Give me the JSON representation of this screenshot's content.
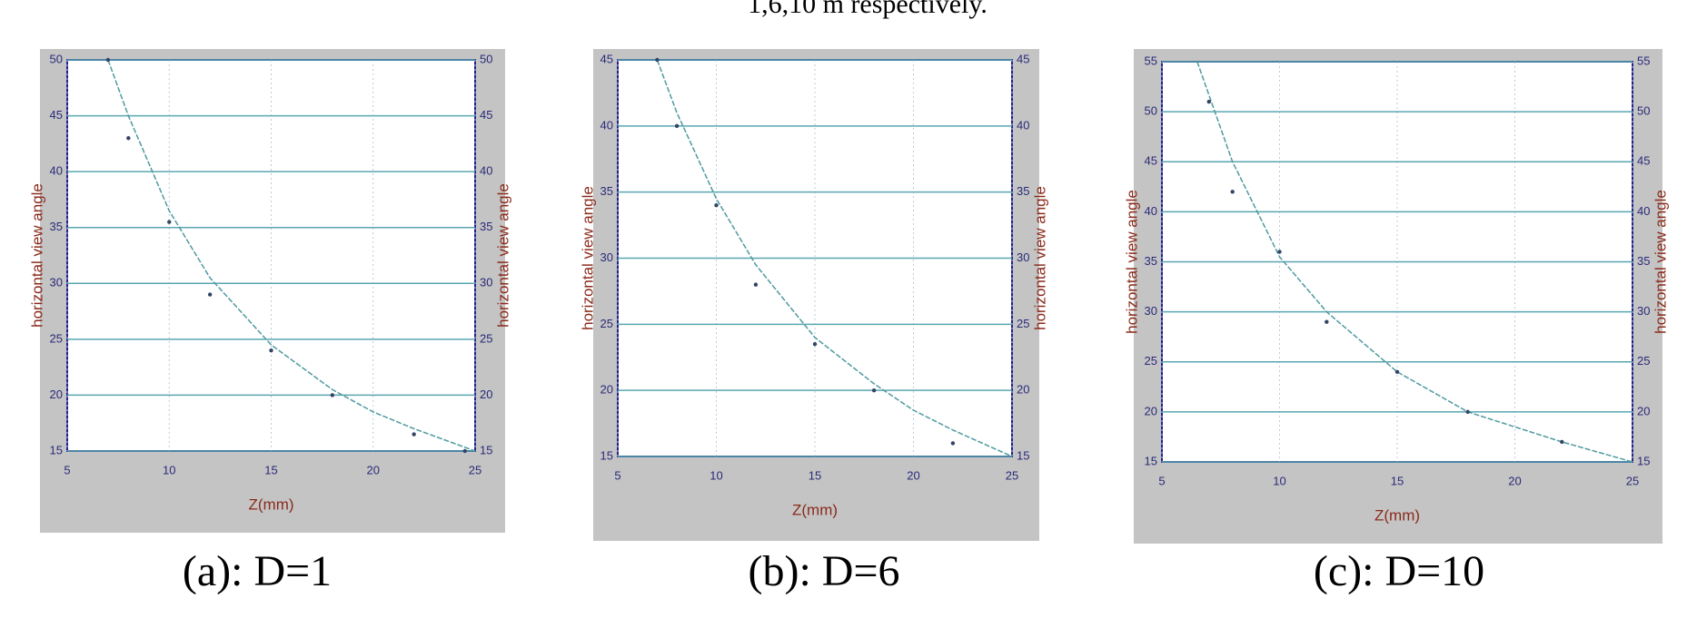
{
  "header_text": "1,6,10 m respectively.",
  "chart_data": [
    {
      "type": "line",
      "caption": "(a): D=1",
      "xlabel": "Z(mm)",
      "ylabel": "horizontal view angle",
      "xlim": [
        5,
        25
      ],
      "xticks": [
        5,
        10,
        15,
        20,
        25
      ],
      "ylim": [
        15,
        50
      ],
      "yticks": [
        15,
        20,
        25,
        30,
        35,
        40,
        45,
        50
      ],
      "grid": true,
      "series": [
        {
          "color": "#4f9aa0",
          "x": [
            7,
            8,
            10,
            12,
            15,
            18,
            20,
            22,
            25
          ],
          "values": [
            50,
            45,
            36.5,
            30.5,
            24.5,
            20.5,
            18.5,
            17,
            15
          ]
        },
        {
          "type": "scatter",
          "color": "#334466",
          "x": [
            7,
            8,
            10,
            12,
            15,
            18,
            22,
            24.5
          ],
          "values": [
            50,
            43,
            35.5,
            29,
            24,
            20,
            16.5,
            15
          ]
        }
      ]
    },
    {
      "type": "line",
      "caption": "(b): D=6",
      "xlabel": "Z(mm)",
      "ylabel": "horizontal view angle",
      "xlim": [
        5,
        25
      ],
      "xticks": [
        5,
        10,
        15,
        20,
        25
      ],
      "ylim": [
        15,
        45
      ],
      "yticks": [
        15,
        20,
        25,
        30,
        35,
        40,
        45
      ],
      "grid": true,
      "series": [
        {
          "color": "#4f9aa0",
          "x": [
            7,
            8,
            10,
            12,
            15,
            18,
            20,
            22,
            25
          ],
          "values": [
            45,
            41,
            34.5,
            29.5,
            24,
            20.5,
            18.5,
            17,
            15
          ]
        },
        {
          "type": "scatter",
          "color": "#334466",
          "x": [
            7,
            8,
            10,
            12,
            15,
            18,
            22
          ],
          "values": [
            45,
            40,
            34,
            28,
            23.5,
            20,
            16
          ]
        }
      ]
    },
    {
      "type": "line",
      "caption": "(c): D=10",
      "xlabel": "Z(mm)",
      "ylabel": "horizontal view angle",
      "xlim": [
        5,
        25
      ],
      "xticks": [
        5,
        10,
        15,
        20,
        25
      ],
      "ylim": [
        15,
        55
      ],
      "yticks": [
        15,
        20,
        25,
        30,
        35,
        40,
        45,
        50,
        55
      ],
      "grid": true,
      "series": [
        {
          "color": "#4f9aa0",
          "x": [
            6.5,
            8,
            10,
            12,
            15,
            18,
            20,
            22,
            25
          ],
          "values": [
            55,
            45,
            35.5,
            30,
            24,
            20,
            18.5,
            17,
            15
          ]
        },
        {
          "type": "scatter",
          "color": "#334466",
          "x": [
            7,
            8,
            10,
            12,
            15,
            18,
            22
          ],
          "values": [
            51,
            42,
            36,
            29,
            24,
            20,
            17
          ]
        }
      ]
    }
  ]
}
